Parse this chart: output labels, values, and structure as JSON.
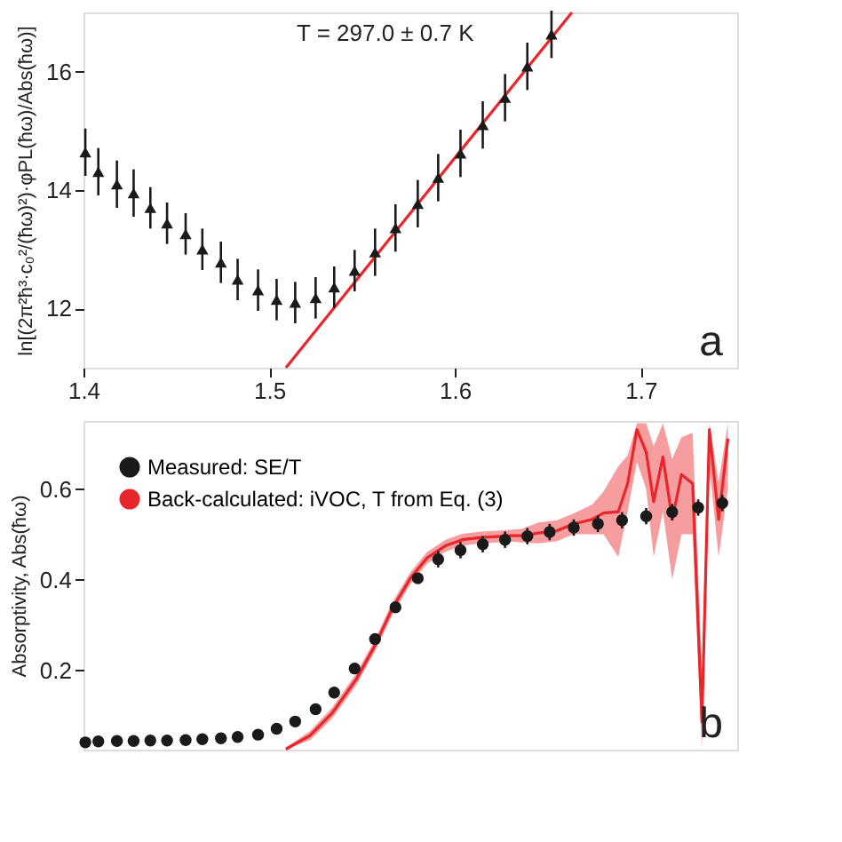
{
  "chart_data": [
    {
      "type": "scatter",
      "ylabel": "ln[(2π²ħ³·c₀²/(ħω)²)·φPL(ħω)/Abs(ħω)]",
      "xlim": [
        1.4,
        1.752
      ],
      "xticks": [
        1.4,
        1.5,
        1.6,
        1.7
      ],
      "ylim": [
        11,
        17
      ],
      "yticks": [
        12,
        14,
        16
      ],
      "grid": false,
      "legend": false,
      "annotations": [
        "T = 297.0 ± 0.7 K",
        "a"
      ],
      "series": [
        {
          "marker": "triangle",
          "color": "#1a1a1a",
          "x": [
            1.401,
            1.408,
            1.418,
            1.427,
            1.436,
            1.445,
            1.455,
            1.464,
            1.474,
            1.483,
            1.494,
            1.504,
            1.514,
            1.525,
            1.535,
            1.546,
            1.557,
            1.568,
            1.58,
            1.591,
            1.603,
            1.615,
            1.627,
            1.639,
            1.652
          ],
          "values": [
            14.64,
            14.31,
            14.1,
            13.95,
            13.7,
            13.44,
            13.26,
            13.0,
            12.78,
            12.49,
            12.31,
            12.15,
            12.1,
            12.18,
            12.36,
            12.64,
            12.95,
            13.36,
            13.77,
            14.21,
            14.62,
            15.1,
            15.56,
            16.09,
            16.63
          ],
          "errors": [
            0.4,
            0.4,
            0.4,
            0.4,
            0.35,
            0.35,
            0.35,
            0.35,
            0.35,
            0.35,
            0.35,
            0.35,
            0.35,
            0.35,
            0.35,
            0.35,
            0.4,
            0.4,
            0.4,
            0.4,
            0.4,
            0.4,
            0.4,
            0.4,
            0.4
          ]
        },
        {
          "type": "line",
          "color": "#e8262b",
          "x": [
            1.509,
            1.663
          ],
          "values": [
            11.0,
            17.0
          ]
        }
      ]
    },
    {
      "type": "scatter",
      "ylabel": "Absorptivity, Abs(ħω)",
      "xlim": [
        1.4,
        1.752
      ],
      "ylim": [
        0.025,
        0.75
      ],
      "yticks": [
        0.2,
        0.4,
        0.6
      ],
      "grid": false,
      "legend": "top left",
      "tick_labels": "y",
      "annotations": [
        "b"
      ],
      "series": [
        {
          "marker": "circle",
          "name": "Measured: SE/T",
          "color": "#1a1a1a",
          "x": [
            1.401,
            1.408,
            1.418,
            1.427,
            1.436,
            1.445,
            1.455,
            1.464,
            1.474,
            1.483,
            1.494,
            1.504,
            1.514,
            1.525,
            1.535,
            1.546,
            1.557,
            1.568,
            1.58,
            1.591,
            1.603,
            1.615,
            1.627,
            1.639,
            1.651,
            1.664,
            1.677,
            1.69,
            1.703,
            1.717,
            1.731,
            1.744
          ],
          "values": [
            0.041,
            0.043,
            0.044,
            0.044,
            0.045,
            0.045,
            0.046,
            0.048,
            0.05,
            0.053,
            0.058,
            0.071,
            0.087,
            0.114,
            0.151,
            0.204,
            0.269,
            0.339,
            0.403,
            0.445,
            0.465,
            0.478,
            0.488,
            0.496,
            0.505,
            0.515,
            0.523,
            0.531,
            0.54,
            0.549,
            0.559,
            0.569
          ],
          "errors": [
            null,
            null,
            null,
            null,
            null,
            null,
            null,
            null,
            null,
            null,
            null,
            null,
            null,
            null,
            null,
            null,
            null,
            null,
            null,
            0.018,
            0.018,
            0.018,
            0.018,
            0.018,
            0.018,
            0.018,
            0.018,
            0.018,
            0.018,
            0.018,
            0.018,
            0.018
          ]
        },
        {
          "type": "line",
          "name": "Back-calculated: iVOC, T from Eq. (3)",
          "color": "#e8262b",
          "x": [
            1.509,
            1.522,
            1.534,
            1.547,
            1.557,
            1.566,
            1.576,
            1.585,
            1.595,
            1.604,
            1.614,
            1.623,
            1.63,
            1.636,
            1.645,
            1.655,
            1.664,
            1.674,
            1.68,
            1.688,
            1.693,
            1.698,
            1.703,
            1.707,
            1.712,
            1.717,
            1.722,
            1.728,
            1.733,
            1.737,
            1.742,
            1.747
          ],
          "values": [
            0.026,
            0.056,
            0.106,
            0.181,
            0.255,
            0.334,
            0.403,
            0.448,
            0.475,
            0.488,
            0.493,
            0.495,
            0.497,
            0.497,
            0.503,
            0.508,
            0.523,
            0.533,
            0.547,
            0.55,
            0.612,
            0.731,
            0.681,
            0.572,
            0.671,
            0.533,
            0.632,
            0.612,
            0.086,
            0.731,
            0.533,
            0.711
          ],
          "lower": [
            0.026,
            0.046,
            0.094,
            0.168,
            0.242,
            0.32,
            0.39,
            0.435,
            0.462,
            0.475,
            0.48,
            0.482,
            0.484,
            0.482,
            0.48,
            0.485,
            0.5,
            0.5,
            0.5,
            0.45,
            0.55,
            0.66,
            0.6,
            0.45,
            0.55,
            0.4,
            0.5,
            0.5,
            0.03,
            0.65,
            0.45,
            0.6
          ],
          "upper": [
            0.03,
            0.066,
            0.118,
            0.194,
            0.268,
            0.348,
            0.416,
            0.461,
            0.488,
            0.501,
            0.506,
            0.508,
            0.51,
            0.512,
            0.526,
            0.531,
            0.546,
            0.566,
            0.594,
            0.65,
            0.674,
            0.745,
            0.745,
            0.694,
            0.745,
            0.666,
            0.714,
            0.724,
            0.2,
            0.745,
            0.616,
            0.745
          ]
        }
      ]
    }
  ]
}
